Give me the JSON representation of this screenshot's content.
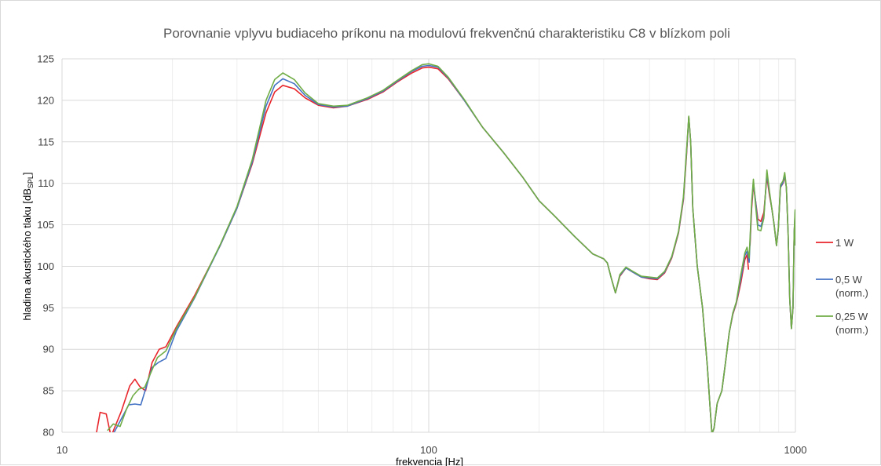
{
  "chart_data": {
    "type": "line",
    "title": "Porovnanie vplyvu budiaceho príkonu na modulovú frekvenčnú charakteristiku C8 v blízkom poli",
    "xlabel": "frekvencia [Hz]",
    "ylabel_main": "hladina akustického tlaku [dB",
    "ylabel_sub": "SPL",
    "ylabel_end": "]",
    "x_scale": "log",
    "xlim": [
      10,
      1000
    ],
    "ylim": [
      80,
      125
    ],
    "x_ticks": [
      {
        "value": 10,
        "label": "10"
      },
      {
        "value": 100,
        "label": "100"
      },
      {
        "value": 1000,
        "label": "1000"
      }
    ],
    "y_ticks": [
      {
        "value": 80,
        "label": "80"
      },
      {
        "value": 85,
        "label": "85"
      },
      {
        "value": 90,
        "label": "90"
      },
      {
        "value": 95,
        "label": "95"
      },
      {
        "value": 100,
        "label": "100"
      },
      {
        "value": 105,
        "label": "105"
      },
      {
        "value": 110,
        "label": "110"
      },
      {
        "value": 115,
        "label": "115"
      },
      {
        "value": 120,
        "label": "120"
      },
      {
        "value": 125,
        "label": "125"
      }
    ],
    "grid": true,
    "legend_position": "right",
    "series": [
      {
        "name": "1 W",
        "color": "#e8262b",
        "points": [
          [
            12.4,
            79.8
          ],
          [
            12.7,
            82.4
          ],
          [
            13.2,
            82.2
          ],
          [
            13.6,
            79.5
          ],
          [
            14.5,
            82.5
          ],
          [
            15.3,
            85.6
          ],
          [
            15.8,
            86.4
          ],
          [
            16.3,
            85.5
          ],
          [
            16.9,
            85.0
          ],
          [
            17.6,
            88.4
          ],
          [
            18.4,
            90.0
          ],
          [
            19.2,
            90.3
          ],
          [
            20.5,
            92.7
          ],
          [
            23,
            96.5
          ],
          [
            27,
            102.5
          ],
          [
            30,
            107.0
          ],
          [
            33,
            112.3
          ],
          [
            36,
            118.5
          ],
          [
            38,
            121.0
          ],
          [
            40,
            121.8
          ],
          [
            43,
            121.4
          ],
          [
            46,
            120.3
          ],
          [
            50,
            119.4
          ],
          [
            55,
            119.1
          ],
          [
            60,
            119.3
          ],
          [
            68,
            120.1
          ],
          [
            75,
            121.0
          ],
          [
            82,
            122.2
          ],
          [
            90,
            123.3
          ],
          [
            96,
            123.9
          ],
          [
            100,
            124.0
          ],
          [
            106,
            123.8
          ],
          [
            113,
            122.6
          ],
          [
            125,
            120.0
          ],
          [
            140,
            116.8
          ],
          [
            160,
            113.7
          ],
          [
            180,
            110.8
          ],
          [
            200,
            107.9
          ],
          [
            220,
            106.1
          ],
          [
            250,
            103.6
          ],
          [
            280,
            101.5
          ],
          [
            300,
            100.9
          ],
          [
            307,
            100.4
          ],
          [
            315,
            98.5
          ],
          [
            323,
            96.8
          ],
          [
            332,
            98.8
          ],
          [
            345,
            99.8
          ],
          [
            360,
            99.3
          ],
          [
            380,
            98.7
          ],
          [
            400,
            98.5
          ],
          [
            420,
            98.4
          ],
          [
            440,
            99.2
          ],
          [
            460,
            101.0
          ],
          [
            480,
            104.0
          ],
          [
            495,
            108.0
          ],
          [
            505,
            113.5
          ],
          [
            512,
            118.0
          ],
          [
            518,
            115.0
          ],
          [
            525,
            107.0
          ],
          [
            540,
            100.0
          ],
          [
            558,
            95.0
          ],
          [
            575,
            88.0
          ],
          [
            585,
            83.0
          ],
          [
            592,
            79.8
          ],
          [
            600,
            80.5
          ],
          [
            612,
            83.5
          ],
          [
            630,
            85.0
          ],
          [
            645,
            88.5
          ],
          [
            660,
            92.0
          ],
          [
            675,
            94.2
          ],
          [
            690,
            95.5
          ],
          [
            710,
            98.0
          ],
          [
            728,
            100.8
          ],
          [
            738,
            101.4
          ],
          [
            745,
            99.6
          ]
        ]
      },
      {
        "name": "1 W",
        "color": "#e8262b",
        "points": [
          [
            752,
            102.5
          ],
          [
            760,
            107.0
          ],
          [
            768,
            109.8
          ],
          [
            778,
            108.0
          ],
          [
            790,
            105.7
          ],
          [
            805,
            105.4
          ],
          [
            820,
            106.5
          ],
          [
            836,
            110.8
          ],
          [
            850,
            108.5
          ],
          [
            862,
            107.0
          ],
          [
            875,
            105.0
          ],
          [
            888,
            102.5
          ],
          [
            898,
            104.5
          ],
          [
            910,
            109.5
          ],
          [
            925,
            110.0
          ],
          [
            935,
            110.8
          ],
          [
            945,
            109.5
          ],
          [
            955,
            104.0
          ],
          [
            965,
            96.0
          ],
          [
            975,
            92.5
          ],
          [
            985,
            95.0
          ],
          [
            992,
            104.0
          ],
          [
            998,
            106.2
          ],
          [
            1000,
            102.5
          ]
        ]
      },
      {
        "name": "0,5 W\n(norm.)",
        "color": "#4472c4",
        "points": [
          [
            13.8,
            79.8
          ],
          [
            14.5,
            81.6
          ],
          [
            15.2,
            83.3
          ],
          [
            15.8,
            83.4
          ],
          [
            16.4,
            83.3
          ],
          [
            16.9,
            85.2
          ],
          [
            17.6,
            87.8
          ],
          [
            18.3,
            88.4
          ],
          [
            19.2,
            88.9
          ],
          [
            20.5,
            92.2
          ],
          [
            23,
            96.2
          ],
          [
            27,
            102.5
          ],
          [
            30,
            107.0
          ],
          [
            33,
            112.5
          ],
          [
            36,
            119.3
          ],
          [
            38,
            121.8
          ],
          [
            40,
            122.6
          ],
          [
            43,
            122.0
          ],
          [
            46,
            120.6
          ],
          [
            50,
            119.5
          ],
          [
            55,
            119.2
          ],
          [
            60,
            119.3
          ],
          [
            68,
            120.2
          ],
          [
            75,
            121.1
          ],
          [
            82,
            122.3
          ],
          [
            90,
            123.5
          ],
          [
            96,
            124.1
          ],
          [
            100,
            124.2
          ],
          [
            106,
            124.0
          ],
          [
            113,
            122.7
          ],
          [
            125,
            120.0
          ],
          [
            140,
            116.8
          ],
          [
            160,
            113.7
          ],
          [
            180,
            110.8
          ],
          [
            200,
            107.9
          ],
          [
            220,
            106.1
          ],
          [
            250,
            103.6
          ],
          [
            280,
            101.5
          ],
          [
            300,
            100.9
          ],
          [
            307,
            100.4
          ],
          [
            315,
            98.5
          ],
          [
            323,
            96.8
          ],
          [
            332,
            98.9
          ],
          [
            345,
            99.8
          ],
          [
            360,
            99.3
          ],
          [
            380,
            98.7
          ],
          [
            400,
            98.6
          ],
          [
            420,
            98.5
          ],
          [
            440,
            99.3
          ],
          [
            460,
            101.1
          ],
          [
            480,
            104.1
          ],
          [
            495,
            108.2
          ],
          [
            505,
            113.8
          ],
          [
            512,
            118.0
          ],
          [
            518,
            115.0
          ],
          [
            525,
            107.0
          ],
          [
            540,
            100.0
          ],
          [
            558,
            95.0
          ],
          [
            575,
            88.0
          ],
          [
            585,
            83.0
          ],
          [
            592,
            79.8
          ],
          [
            600,
            80.5
          ],
          [
            612,
            83.5
          ],
          [
            630,
            85.0
          ],
          [
            645,
            88.5
          ],
          [
            660,
            92.0
          ],
          [
            675,
            94.3
          ],
          [
            690,
            95.6
          ],
          [
            710,
            98.5
          ],
          [
            728,
            101.3
          ],
          [
            738,
            101.8
          ],
          [
            748,
            100.5
          ],
          [
            760,
            107.5
          ],
          [
            768,
            110.2
          ],
          [
            778,
            108.0
          ],
          [
            790,
            105.0
          ],
          [
            805,
            104.8
          ],
          [
            820,
            106.0
          ],
          [
            836,
            111.2
          ],
          [
            850,
            108.8
          ],
          [
            862,
            107.0
          ],
          [
            875,
            105.0
          ],
          [
            888,
            102.5
          ],
          [
            898,
            104.5
          ],
          [
            910,
            109.5
          ],
          [
            925,
            110.1
          ],
          [
            935,
            111.0
          ],
          [
            945,
            109.5
          ],
          [
            955,
            104.0
          ],
          [
            965,
            96.0
          ],
          [
            975,
            92.5
          ],
          [
            985,
            95.0
          ],
          [
            992,
            104.0
          ],
          [
            998,
            106.5
          ],
          [
            1000,
            102.5
          ]
        ]
      },
      {
        "name": "0,25 W\n(norm.)",
        "color": "#70ad47",
        "points": [
          [
            13.3,
            80.2
          ],
          [
            13.8,
            81.0
          ],
          [
            14.4,
            80.7
          ],
          [
            15.0,
            82.8
          ],
          [
            15.6,
            84.4
          ],
          [
            16.2,
            85.2
          ],
          [
            16.8,
            85.4
          ],
          [
            17.4,
            87.0
          ],
          [
            18.2,
            89.0
          ],
          [
            19.2,
            89.8
          ],
          [
            20.5,
            92.5
          ],
          [
            23,
            96.3
          ],
          [
            27,
            102.6
          ],
          [
            30,
            107.2
          ],
          [
            33,
            112.8
          ],
          [
            36,
            120.0
          ],
          [
            38,
            122.5
          ],
          [
            40,
            123.3
          ],
          [
            43,
            122.5
          ],
          [
            46,
            120.9
          ],
          [
            50,
            119.6
          ],
          [
            55,
            119.3
          ],
          [
            60,
            119.4
          ],
          [
            68,
            120.3
          ],
          [
            75,
            121.2
          ],
          [
            82,
            122.4
          ],
          [
            90,
            123.6
          ],
          [
            96,
            124.3
          ],
          [
            100,
            124.4
          ],
          [
            106,
            124.1
          ],
          [
            113,
            122.8
          ],
          [
            125,
            120.1
          ],
          [
            140,
            116.8
          ],
          [
            160,
            113.7
          ],
          [
            180,
            110.8
          ],
          [
            200,
            107.9
          ],
          [
            220,
            106.1
          ],
          [
            250,
            103.6
          ],
          [
            280,
            101.5
          ],
          [
            300,
            100.9
          ],
          [
            307,
            100.4
          ],
          [
            315,
            98.5
          ],
          [
            323,
            96.8
          ],
          [
            332,
            99.0
          ],
          [
            345,
            99.9
          ],
          [
            360,
            99.4
          ],
          [
            380,
            98.8
          ],
          [
            400,
            98.7
          ],
          [
            420,
            98.6
          ],
          [
            440,
            99.4
          ],
          [
            460,
            101.2
          ],
          [
            480,
            104.2
          ],
          [
            495,
            108.4
          ],
          [
            505,
            114.0
          ],
          [
            512,
            118.1
          ],
          [
            518,
            115.0
          ],
          [
            525,
            107.0
          ],
          [
            540,
            100.0
          ],
          [
            558,
            95.0
          ],
          [
            575,
            88.0
          ],
          [
            585,
            83.0
          ],
          [
            592,
            79.8
          ],
          [
            600,
            80.5
          ],
          [
            612,
            83.5
          ],
          [
            630,
            85.0
          ],
          [
            645,
            88.5
          ],
          [
            660,
            92.0
          ],
          [
            675,
            94.4
          ],
          [
            690,
            95.7
          ],
          [
            710,
            99.0
          ],
          [
            728,
            101.6
          ],
          [
            738,
            102.3
          ],
          [
            748,
            101.0
          ],
          [
            760,
            107.8
          ],
          [
            768,
            110.5
          ],
          [
            778,
            107.5
          ],
          [
            790,
            104.4
          ],
          [
            805,
            104.3
          ],
          [
            820,
            105.8
          ],
          [
            836,
            111.6
          ],
          [
            850,
            109.0
          ],
          [
            862,
            107.0
          ],
          [
            875,
            105.0
          ],
          [
            888,
            102.5
          ],
          [
            898,
            104.5
          ],
          [
            910,
            109.8
          ],
          [
            925,
            110.3
          ],
          [
            935,
            111.3
          ],
          [
            945,
            109.5
          ],
          [
            955,
            104.0
          ],
          [
            965,
            96.0
          ],
          [
            975,
            92.5
          ],
          [
            985,
            95.0
          ],
          [
            992,
            104.0
          ],
          [
            998,
            106.8
          ],
          [
            1000,
            102.5
          ]
        ]
      }
    ],
    "legend": [
      {
        "label_lines": [
          "1 W"
        ],
        "color": "#e8262b"
      },
      {
        "label_lines": [
          "0,5 W",
          "(norm.)"
        ],
        "color": "#4472c4"
      },
      {
        "label_lines": [
          "0,25 W",
          "(norm.)"
        ],
        "color": "#70ad47"
      }
    ]
  }
}
